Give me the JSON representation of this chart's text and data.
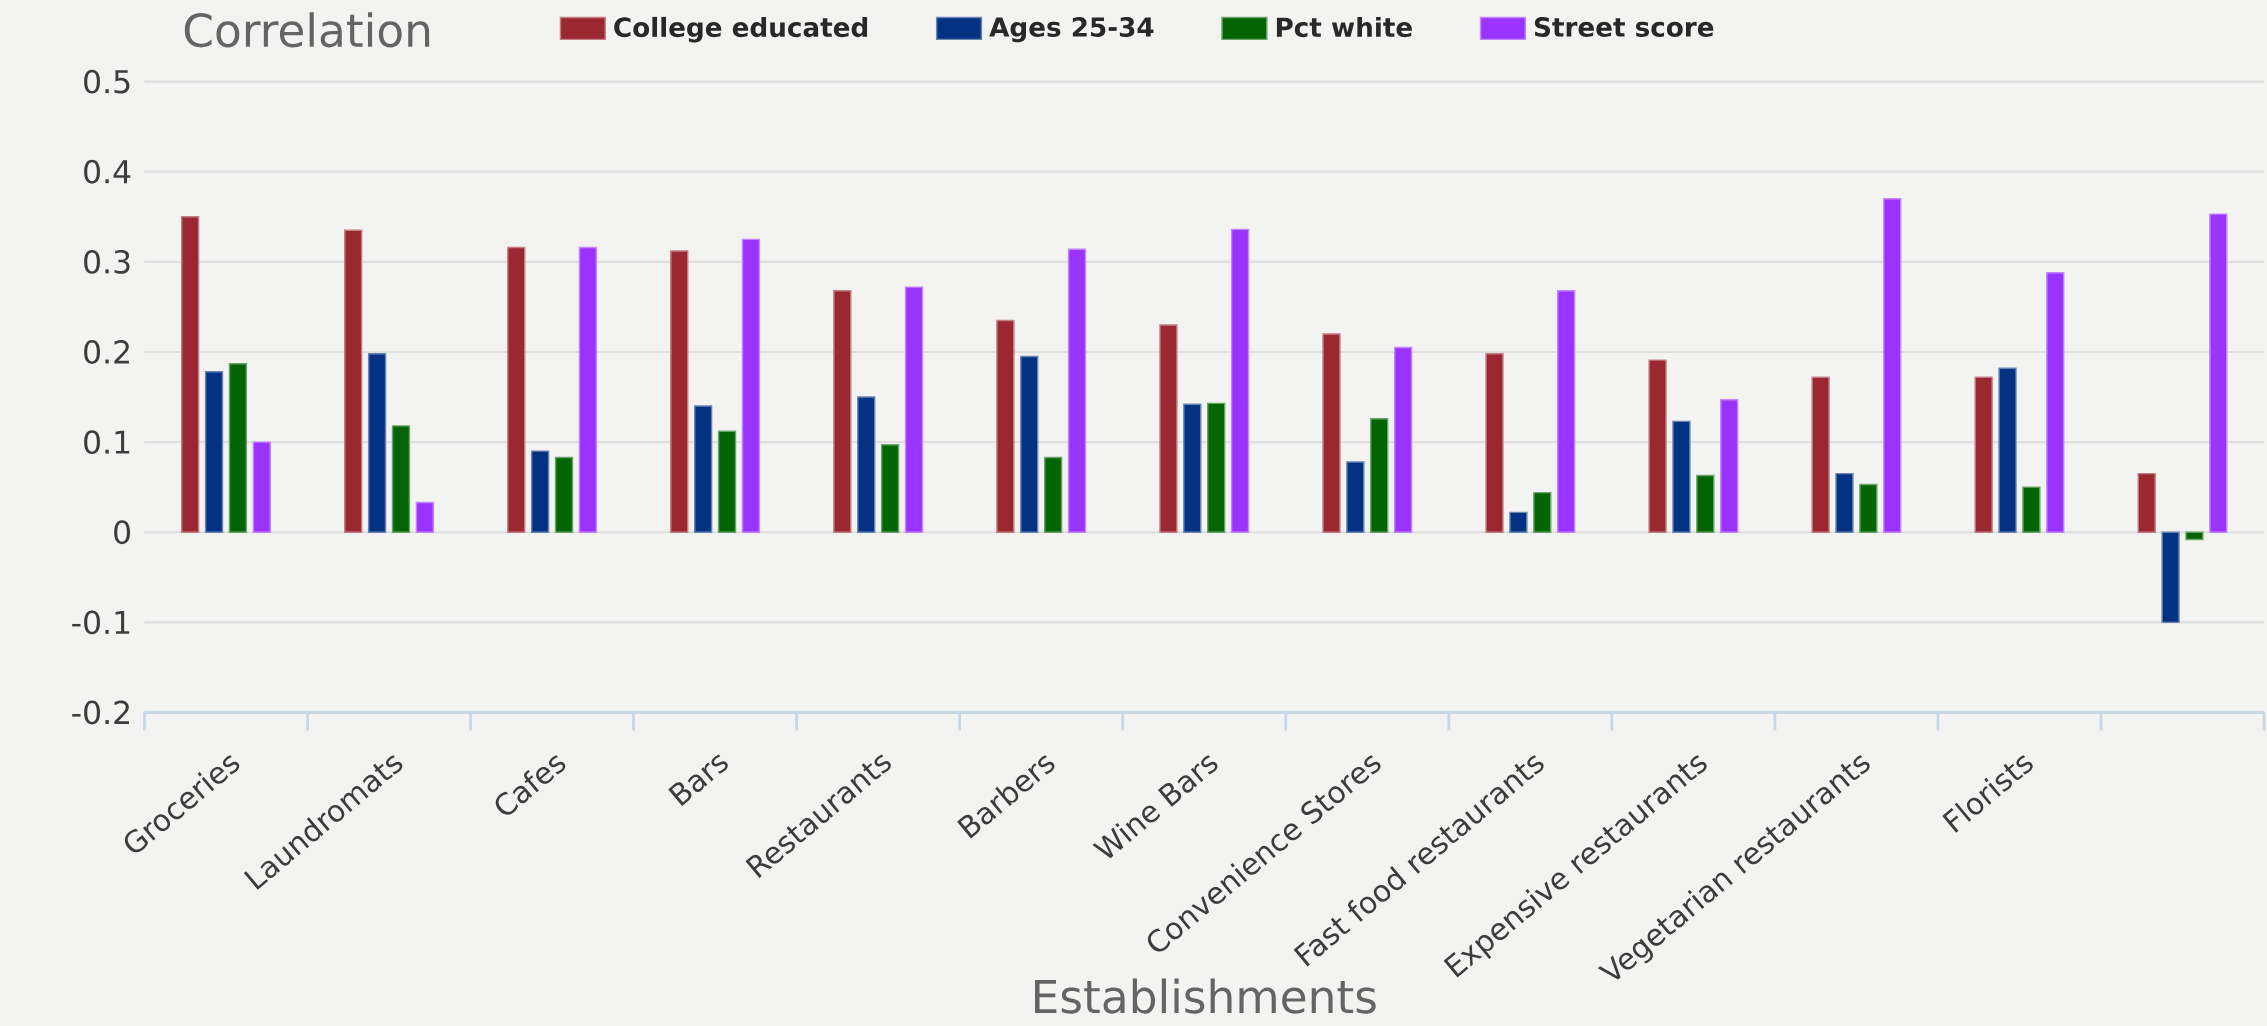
{
  "chart_data": {
    "type": "bar",
    "ylabel": "Correlation",
    "xlabel": "Establishments",
    "categories": [
      "Groceries",
      "Laundromats",
      "Cafes",
      "Bars",
      "Restaurants",
      "Barbers",
      "Wine Bars",
      "Convenience Stores",
      "Fast food restaurants",
      "Expensive restaurants",
      "Vegetarian restaurants",
      "Florists",
      null
    ],
    "series": [
      {
        "name": "College educated",
        "color": "#9b2830",
        "values": [
          0.35,
          0.335,
          0.316,
          0.312,
          0.268,
          0.235,
          0.23,
          0.22,
          0.198,
          0.191,
          0.172,
          0.172,
          0.065
        ]
      },
      {
        "name": "Ages 25-34",
        "color": "#033282",
        "values": [
          0.178,
          0.198,
          0.09,
          0.14,
          0.15,
          0.195,
          0.142,
          0.078,
          0.022,
          0.123,
          0.065,
          0.182,
          -0.1
        ]
      },
      {
        "name": "Pct white",
        "color": "#036503",
        "values": [
          0.187,
          0.118,
          0.083,
          0.112,
          0.097,
          0.083,
          0.143,
          0.126,
          0.044,
          0.063,
          0.053,
          0.05,
          -0.008
        ]
      },
      {
        "name": "Street score",
        "color": "#9b33ff",
        "values": [
          0.1,
          0.033,
          0.316,
          0.325,
          0.272,
          0.314,
          0.336,
          0.205,
          0.268,
          0.147,
          0.37,
          0.288,
          0.353
        ]
      }
    ],
    "ylim": [
      -0.2,
      0.5
    ],
    "yticks": [
      -0.2,
      -0.1,
      0,
      0.1,
      0.2,
      0.3,
      0.4,
      0.5
    ],
    "grid": "y",
    "legend": "top"
  }
}
